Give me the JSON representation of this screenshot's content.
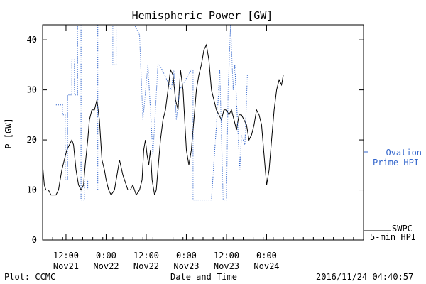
{
  "chart_data": {
    "type": "line",
    "title": "Hemispheric Power [GW]",
    "ylabel": "P [GW]",
    "xlabel": "Date and Time",
    "footer_left": "Plot: CCMC",
    "footer_right": "2016/11/24 04:40:57",
    "ylim": [
      0,
      43
    ],
    "xlim": [
      "2016-11-20T05:00",
      "2016-11-24T05:00"
    ],
    "yticks": [
      0,
      10,
      20,
      30,
      40
    ],
    "xticks": [
      {
        "t": "2016-11-20T12:00",
        "time": "12:00",
        "date": "Nov21"
      },
      {
        "t": "2016-11-21T00:00",
        "time": "0:00",
        "date": "Nov22"
      },
      {
        "t": "2016-11-21T12:00",
        "time": "12:00",
        "date": "Nov22"
      },
      {
        "t": "2016-11-22T00:00",
        "time": "0:00",
        "date": "Nov23"
      },
      {
        "t": "2016-11-22T12:00",
        "time": "12:00",
        "date": "Nov23"
      },
      {
        "t": "2016-11-23T00:00",
        "time": "0:00",
        "date": "Nov24"
      }
    ],
    "colors": {
      "swpc": "#000000",
      "ovation": "#3366cc"
    },
    "series": [
      {
        "name": "SWPC 5-min HPI",
        "style": "solid",
        "color": "#000000",
        "x": [
          "2016-11-20T05:00",
          "2016-11-20T05:30",
          "2016-11-20T06:00",
          "2016-11-20T06:45",
          "2016-11-20T07:30",
          "2016-11-20T08:15",
          "2016-11-20T09:00",
          "2016-11-20T09:45",
          "2016-11-20T10:15",
          "2016-11-20T10:45",
          "2016-11-20T11:30",
          "2016-11-20T12:15",
          "2016-11-20T13:00",
          "2016-11-20T13:45",
          "2016-11-20T14:15",
          "2016-11-20T15:00",
          "2016-11-20T15:45",
          "2016-11-20T16:30",
          "2016-11-20T17:15",
          "2016-11-20T17:45",
          "2016-11-20T18:30",
          "2016-11-20T19:00",
          "2016-11-20T19:45",
          "2016-11-20T20:30",
          "2016-11-20T21:15",
          "2016-11-20T22:00",
          "2016-11-20T22:45",
          "2016-11-20T23:30",
          "2016-11-21T00:00",
          "2016-11-21T00:45",
          "2016-11-21T01:30",
          "2016-11-21T02:30",
          "2016-11-21T03:00",
          "2016-11-21T04:00",
          "2016-11-21T05:00",
          "2016-11-21T06:30",
          "2016-11-21T07:15",
          "2016-11-21T08:00",
          "2016-11-21T09:00",
          "2016-11-21T10:00",
          "2016-11-21T10:45",
          "2016-11-21T11:15",
          "2016-11-21T11:45",
          "2016-11-21T12:15",
          "2016-11-21T12:45",
          "2016-11-21T13:15",
          "2016-11-21T13:45",
          "2016-11-21T14:30",
          "2016-11-21T15:00",
          "2016-11-21T15:30",
          "2016-11-21T16:15",
          "2016-11-21T17:00",
          "2016-11-21T17:45",
          "2016-11-21T18:30",
          "2016-11-21T19:15",
          "2016-11-21T20:00",
          "2016-11-21T20:45",
          "2016-11-21T21:30",
          "2016-11-21T22:15",
          "2016-11-21T23:00",
          "2016-11-21T23:30",
          "2016-11-22T00:00",
          "2016-11-22T00:45",
          "2016-11-22T01:30",
          "2016-11-22T02:15",
          "2016-11-22T03:00",
          "2016-11-22T03:45",
          "2016-11-22T04:30",
          "2016-11-22T05:15",
          "2016-11-22T06:00",
          "2016-11-22T06:45",
          "2016-11-22T07:30",
          "2016-11-22T08:15",
          "2016-11-22T09:00",
          "2016-11-22T09:45",
          "2016-11-22T10:30",
          "2016-11-22T11:15",
          "2016-11-22T12:00",
          "2016-11-22T12:45",
          "2016-11-22T13:30",
          "2016-11-22T14:15",
          "2016-11-22T15:00",
          "2016-11-22T15:45",
          "2016-11-22T16:30",
          "2016-11-22T17:15",
          "2016-11-22T18:00",
          "2016-11-22T18:45",
          "2016-11-22T19:30",
          "2016-11-22T20:15",
          "2016-11-22T21:00",
          "2016-11-22T21:45",
          "2016-11-22T22:30",
          "2016-11-22T23:15",
          "2016-11-23T00:00",
          "2016-11-23T00:45",
          "2016-11-23T01:30",
          "2016-11-23T02:15",
          "2016-11-23T03:00",
          "2016-11-23T03:45",
          "2016-11-23T04:30",
          "2016-11-23T05:00"
        ],
        "values": [
          15,
          11,
          10,
          10,
          9,
          9,
          9,
          10,
          12,
          14,
          16,
          18,
          19,
          20,
          19,
          14,
          11,
          10,
          11,
          15,
          20,
          24,
          26,
          26,
          28,
          24,
          16,
          14,
          12,
          10,
          9,
          10,
          12,
          16,
          13,
          10,
          10,
          11,
          9,
          10,
          12,
          18,
          20,
          17,
          15,
          18,
          12,
          9,
          10,
          14,
          20,
          24,
          26,
          30,
          34,
          33,
          28,
          26,
          34,
          30,
          24,
          18,
          15,
          18,
          24,
          30,
          33,
          35,
          38,
          39,
          36,
          30,
          28,
          26,
          25,
          24,
          26,
          26,
          25,
          26,
          24,
          22,
          25,
          25,
          24,
          23,
          20,
          21,
          23,
          26,
          25,
          23,
          17,
          11,
          14,
          20,
          26,
          30,
          32,
          31,
          33
        ]
      },
      {
        "name": "Ovation Prime HPI",
        "style": "dotted",
        "color": "#3366cc",
        "x": [
          "2016-11-20T09:00",
          "2016-11-20T11:00",
          "2016-11-20T11:00",
          "2016-11-20T11:45",
          "2016-11-20T11:45",
          "2016-11-20T12:30",
          "2016-11-20T12:30",
          "2016-11-20T13:45",
          "2016-11-20T13:45",
          "2016-11-20T14:30",
          "2016-11-20T14:30",
          "2016-11-20T15:30",
          "2016-11-20T15:30",
          "2016-11-20T16:30",
          "2016-11-20T16:30",
          "2016-11-20T17:30",
          "2016-11-20T17:30",
          "2016-11-20T18:30",
          "2016-11-20T18:30",
          "2016-11-20T19:30",
          "2016-11-20T19:30",
          "2016-11-20T20:30",
          "2016-11-20T20:30",
          "2016-11-20T21:30",
          "2016-11-20T21:30",
          "2016-11-21T02:00",
          "2016-11-21T02:00",
          "2016-11-21T03:00",
          "2016-11-21T03:00",
          "2016-11-21T08:30",
          "2016-11-21T10:00",
          "2016-11-21T10:00",
          "2016-11-21T11:00",
          "2016-11-21T11:00",
          "2016-11-21T12:30",
          "2016-11-21T12:30",
          "2016-11-21T14:00",
          "2016-11-21T14:00",
          "2016-11-21T15:30",
          "2016-11-21T15:30",
          "2016-11-21T16:00",
          "2016-11-21T16:00",
          "2016-11-21T17:30",
          "2016-11-21T17:30",
          "2016-11-21T19:30",
          "2016-11-21T19:30",
          "2016-11-21T20:15",
          "2016-11-21T20:15",
          "2016-11-21T21:00",
          "2016-11-21T21:00",
          "2016-11-21T22:00",
          "2016-11-21T22:00",
          "2016-11-22T01:30",
          "2016-11-22T02:00",
          "2016-11-22T02:00",
          "2016-11-22T04:30",
          "2016-11-22T04:30",
          "2016-11-22T07:30",
          "2016-11-22T09:30",
          "2016-11-22T09:30",
          "2016-11-22T10:00",
          "2016-11-22T10:00",
          "2016-11-22T11:00",
          "2016-11-22T11:00",
          "2016-11-22T12:00",
          "2016-11-22T12:00",
          "2016-11-22T12:30",
          "2016-11-22T12:30",
          "2016-11-22T13:15",
          "2016-11-22T13:15",
          "2016-11-22T14:00",
          "2016-11-22T14:00",
          "2016-11-22T14:30",
          "2016-11-22T14:30",
          "2016-11-22T15:30",
          "2016-11-22T15:30",
          "2016-11-22T16:00",
          "2016-11-22T16:00",
          "2016-11-22T16:30",
          "2016-11-22T16:30",
          "2016-11-22T17:30",
          "2016-11-22T17:30",
          "2016-11-22T18:15",
          "2016-11-22T18:15",
          "2016-11-22T19:00",
          "2016-11-22T19:00",
          "2016-11-22T19:30",
          "2016-11-22T19:30",
          "2016-11-22T20:15",
          "2016-11-22T20:15",
          "2016-11-22T21:15",
          "2016-11-22T21:15",
          "2016-11-22T22:00",
          "2016-11-22T22:00",
          "2016-11-23T00:00",
          "2016-11-23T00:00",
          "2016-11-23T03:00"
        ],
        "values": [
          27,
          27,
          25,
          25,
          12,
          12,
          29,
          29,
          36,
          36,
          29,
          29,
          43,
          43,
          8,
          8,
          12,
          12,
          10,
          10,
          10,
          10,
          10,
          10,
          43,
          43,
          35,
          35,
          43,
          43,
          41,
          41,
          24,
          24,
          35,
          35,
          17,
          17,
          35,
          35,
          35,
          35,
          33,
          33,
          30,
          30,
          34,
          34,
          24,
          24,
          30,
          30,
          34,
          34,
          8,
          8,
          8,
          8,
          28,
          28,
          34,
          34,
          8,
          8,
          8,
          8,
          30,
          30,
          43,
          43,
          30,
          30,
          35,
          35,
          21,
          21,
          14,
          14,
          21,
          21,
          19,
          19,
          33,
          33,
          33,
          33,
          33,
          33,
          33,
          33,
          33,
          33,
          33,
          33,
          33,
          33,
          33
        ]
      }
    ],
    "legend": {
      "swpc_line1": "SWPC",
      "swpc_line2": "5-min HPI",
      "ovation_line1": "— Ovation",
      "ovation_line2": "Prime HPI"
    }
  }
}
